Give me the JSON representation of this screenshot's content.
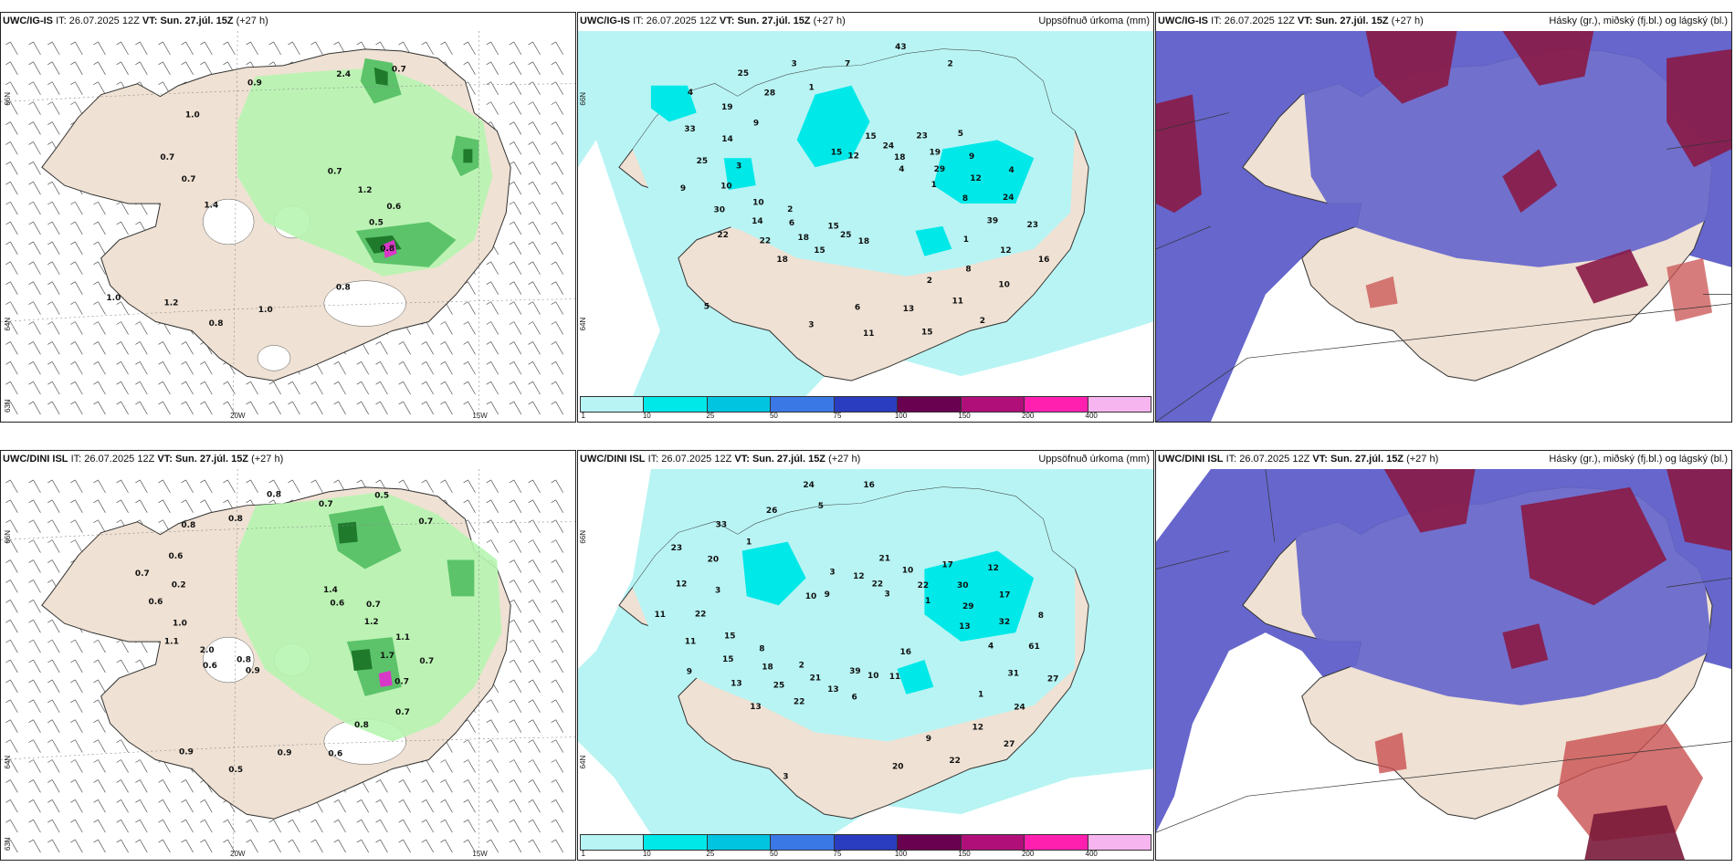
{
  "panels": {
    "p1": {
      "model": "UWC/IG-IS",
      "it_label": "IT:",
      "it": "26.07.2025 12Z",
      "vt_label": "VT:",
      "vt": "Sun. 27.júl. 15Z",
      "lead": "(+27 h)",
      "right": ""
    },
    "p2": {
      "model": "UWC/IG-IS",
      "it_label": "IT:",
      "it": "26.07.2025 12Z",
      "vt_label": "VT:",
      "vt": "Sun. 27.júl. 15Z",
      "lead": "(+27 h)",
      "right": "Uppsöfnuð úrkoma (mm)"
    },
    "p3": {
      "model": "UWC/IG-IS",
      "it_label": "IT:",
      "it": "26.07.2025 12Z",
      "vt_label": "VT:",
      "vt": "Sun. 27.júl. 15Z",
      "lead": "(+27 h)",
      "right": "Hásky (gr.), miðský (fj.bl.) og lágský (bl.)"
    },
    "p4": {
      "model": "UWC/DINI ISL",
      "it_label": "IT:",
      "it": "26.07.2025 12Z",
      "vt_label": "VT:",
      "vt": "Sun. 27.júl. 15Z",
      "lead": "(+27 h)",
      "right": ""
    },
    "p5": {
      "model": "UWC/DINI ISL",
      "it_label": "IT:",
      "it": "26.07.2025 12Z",
      "vt_label": "VT:",
      "vt": "Sun. 27.júl. 15Z",
      "lead": "(+27 h)",
      "right": "Uppsöfnuð úrkoma (mm)"
    },
    "p6": {
      "model": "UWC/DINI ISL",
      "it_label": "IT:",
      "it": "26.07.2025 12Z",
      "vt_label": "VT:",
      "vt": "Sun. 27.júl. 15Z",
      "lead": "(+27 h)",
      "right": "Hásky (gr.), miðský (fj.bl.) og lágský (bl.)"
    }
  },
  "axes": {
    "lat_66": "66N",
    "lat_64": "64N",
    "lat_63": "63N",
    "lon_20": "20W",
    "lon_15": "15W"
  },
  "colorbar": {
    "labels": [
      "1",
      "10",
      "25",
      "50",
      "75",
      "100",
      "150",
      "200",
      "400"
    ],
    "colors": [
      "#b8f4f4",
      "#00e8e8",
      "#00c4e0",
      "#3a78e6",
      "#2a3cc0",
      "#6a0050",
      "#b00f7a",
      "#ff20b0",
      "#f7b5ef"
    ]
  },
  "wind_labels_top": [
    "0.6",
    "0.8",
    "0.7",
    "0.7",
    "0.8",
    "1.0",
    "1.0",
    "0.7",
    "0.8",
    "1.4",
    "0.9",
    "1.2",
    "1.0",
    "0.7",
    "2.4",
    "0.5",
    "1.2"
  ],
  "wind_labels_bottom": [
    "0.7",
    "0.9",
    "0.7",
    "1.4",
    "0.7",
    "0.6",
    "0.8",
    "0.7",
    "0.6",
    "1.1",
    "0.8",
    "1.1",
    "0.5",
    "0.6",
    "0.5",
    "0.7",
    "0.8",
    "0.6",
    "0.6",
    "0.8",
    "2.0",
    "0.8",
    "1.2",
    "0.9",
    "1.0",
    "0.7",
    "1.7",
    "0.9",
    "0.2",
    "0.7"
  ],
  "precip_labels_top": [
    "16",
    "18",
    "4",
    "5",
    "2",
    "22",
    "15",
    "4",
    "18",
    "9",
    "15",
    "23",
    "15",
    "33",
    "23",
    "10",
    "22",
    "25",
    "9",
    "15",
    "30",
    "12",
    "24",
    "25",
    "25",
    "24",
    "12",
    "18",
    "19",
    "19",
    "11",
    "14",
    "3",
    "12",
    "11",
    "10",
    "43",
    "39",
    "15",
    "14",
    "18",
    "8",
    "6",
    "28",
    "29",
    "13",
    "10",
    "7",
    "8",
    "3",
    "3",
    "2",
    "1",
    "5",
    "9",
    "4",
    "2",
    "2",
    "1",
    "1",
    "6"
  ],
  "precip_labels_bottom": [
    "16",
    "13",
    "10",
    "12",
    "11",
    "9",
    "3",
    "8",
    "6",
    "11",
    "21",
    "27",
    "22",
    "23",
    "17",
    "27",
    "13",
    "9",
    "17",
    "10",
    "11",
    "12",
    "61",
    "13",
    "12",
    "10",
    "24",
    "25",
    "33",
    "30",
    "22",
    "15",
    "24",
    "32",
    "39",
    "22",
    "22",
    "31",
    "21",
    "20",
    "22",
    "12",
    "18",
    "26",
    "29",
    "20",
    "15",
    "16",
    "4",
    "3",
    "3",
    "3",
    "1",
    "2",
    "1",
    "1",
    "9",
    "8",
    "5",
    "13"
  ]
}
